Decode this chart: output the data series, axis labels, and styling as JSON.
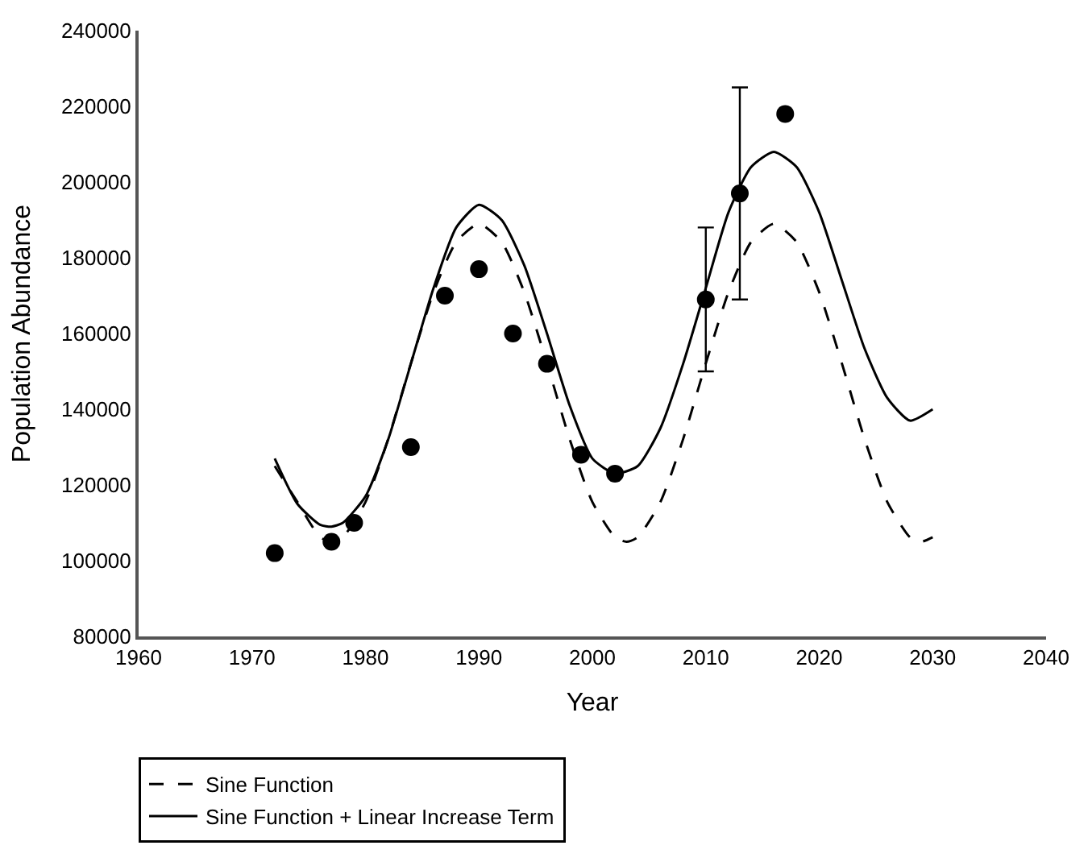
{
  "chart_data": {
    "type": "scatter",
    "xlabel": "Year",
    "ylabel": "Population Abundance",
    "xlim": [
      1960,
      2040
    ],
    "xticks": [
      1960,
      1970,
      1980,
      1990,
      2000,
      2010,
      2020,
      2030,
      2040
    ],
    "ylim": [
      80000,
      240000
    ],
    "yticks": [
      80000,
      100000,
      120000,
      140000,
      160000,
      180000,
      200000,
      220000,
      240000
    ],
    "grid": false,
    "legend": "bottom",
    "marker": "circle",
    "series": [
      {
        "color": "#000000",
        "x": [
          1972,
          1977,
          1979,
          1984,
          1987,
          1990,
          1993,
          1996,
          1999,
          2002,
          2010,
          2013,
          2017
        ],
        "values": [
          102000,
          105000,
          110000,
          130000,
          170000,
          177000,
          160000,
          152000,
          128000,
          123000,
          169000,
          197000,
          218000
        ],
        "errors": [
          null,
          null,
          null,
          null,
          null,
          null,
          null,
          null,
          null,
          null,
          [
            150000,
            188000
          ],
          [
            169000,
            225000
          ],
          null
        ]
      },
      {
        "type": "line",
        "name": "Sine Function",
        "color": "#000000",
        "line_style": "dashed",
        "marker": "none",
        "x": [
          1972,
          1974,
          1976,
          1977,
          1978,
          1980,
          1982,
          1984,
          1986,
          1988,
          1990,
          1992,
          1994,
          1996,
          1998,
          2000,
          2002,
          2003,
          2004,
          2006,
          2008,
          2010,
          2012,
          2014,
          2016,
          2018,
          2020,
          2022,
          2024,
          2026,
          2028,
          2029,
          2030
        ],
        "values": [
          125000,
          115500,
          106200,
          105000,
          106200,
          115500,
          132100,
          152100,
          170900,
          184200,
          189000,
          184200,
          170900,
          152100,
          132100,
          115500,
          106200,
          105000,
          106200,
          115500,
          132100,
          152100,
          170900,
          184200,
          189000,
          184200,
          170900,
          152100,
          132100,
          115500,
          106200,
          105000,
          106200
        ]
      },
      {
        "type": "line",
        "name": "Sine Function + Linear Increase Term",
        "color": "#000000",
        "line_style": "solid",
        "marker": "none",
        "x": [
          1972,
          1974,
          1976,
          1977,
          1978,
          1980,
          1982,
          1984,
          1986,
          1988,
          1990,
          1992,
          1994,
          1996,
          1998,
          2000,
          2002,
          2004,
          2006,
          2008,
          2010,
          2012,
          2014,
          2016,
          2018,
          2020,
          2022,
          2024,
          2026,
          2028,
          2030
        ],
        "values": [
          127000,
          115000,
          109500,
          109000,
          110000,
          117000,
          132000,
          152000,
          172000,
          188000,
          194000,
          190000,
          178000,
          160000,
          141000,
          127000,
          123000,
          125000,
          135000,
          152000,
          172000,
          192000,
          204000,
          208000,
          204000,
          192000,
          174000,
          156000,
          143000,
          137000,
          140000
        ]
      }
    ]
  }
}
